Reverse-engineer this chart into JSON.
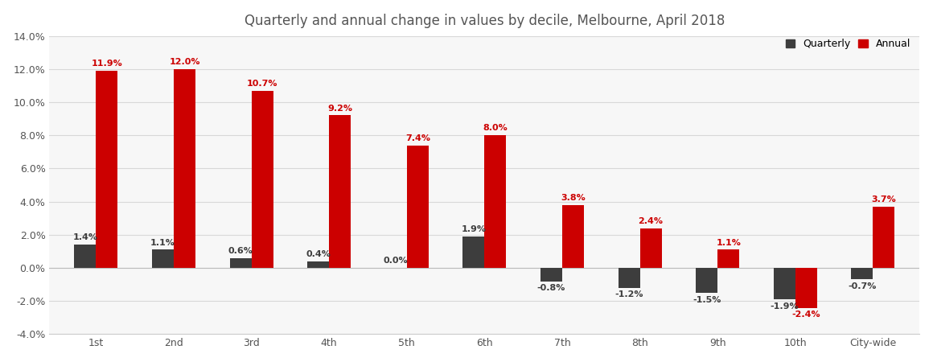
{
  "title": "Quarterly and annual change in values by decile, Melbourne, April 2018",
  "categories": [
    "1st",
    "2nd",
    "3rd",
    "4th",
    "5th",
    "6th",
    "7th",
    "8th",
    "9th",
    "10th",
    "City-wide"
  ],
  "quarterly": [
    1.4,
    1.1,
    0.6,
    0.4,
    0.0,
    1.9,
    -0.8,
    -1.2,
    -1.5,
    -1.9,
    -0.7
  ],
  "annual": [
    11.9,
    12.0,
    10.7,
    9.2,
    7.4,
    8.0,
    3.8,
    2.4,
    1.1,
    -2.4,
    3.7
  ],
  "quarterly_color": "#3d3d3d",
  "annual_color": "#cc0000",
  "background_color": "#ffffff",
  "plot_bg_color": "#f7f7f7",
  "grid_color": "#d8d8d8",
  "ylim": [
    -4.0,
    14.0
  ],
  "yticks": [
    -4.0,
    -2.0,
    0.0,
    2.0,
    4.0,
    6.0,
    8.0,
    10.0,
    12.0,
    14.0
  ],
  "bar_width": 0.28,
  "legend_quarterly": "Quarterly",
  "legend_annual": "Annual",
  "title_fontsize": 12,
  "label_fontsize": 8,
  "tick_fontsize": 9
}
